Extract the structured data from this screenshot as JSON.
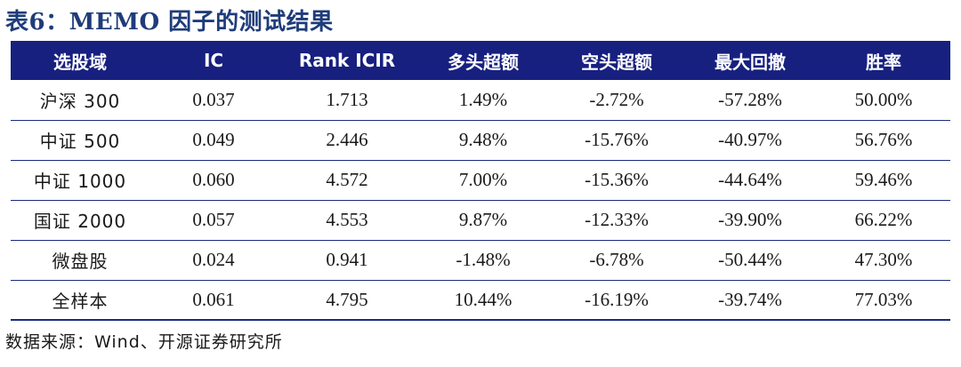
{
  "title": "表6：MEMO 因子的测试结果",
  "table": {
    "headers": [
      "选股域",
      "IC",
      "Rank ICIR",
      "多头超额",
      "空头超额",
      "最大回撤",
      "胜率"
    ],
    "rows": [
      [
        "沪深 300",
        "0.037",
        "1.713",
        "1.49%",
        "-2.72%",
        "-57.28%",
        "50.00%"
      ],
      [
        "中证 500",
        "0.049",
        "2.446",
        "9.48%",
        "-15.76%",
        "-40.97%",
        "56.76%"
      ],
      [
        "中证 1000",
        "0.060",
        "4.572",
        "7.00%",
        "-15.36%",
        "-44.64%",
        "59.46%"
      ],
      [
        "国证 2000",
        "0.057",
        "4.553",
        "9.87%",
        "-12.33%",
        "-39.90%",
        "66.22%"
      ],
      [
        "微盘股",
        "0.024",
        "0.941",
        "-1.48%",
        "-6.78%",
        "-50.44%",
        "47.30%"
      ],
      [
        "全样本",
        "0.061",
        "4.795",
        "10.44%",
        "-16.19%",
        "-39.74%",
        "77.03%"
      ]
    ]
  },
  "source": "数据来源：Wind、开源证券研究所",
  "colors": {
    "header_bg": "#17207f",
    "title_color": "#1f3c7a"
  }
}
